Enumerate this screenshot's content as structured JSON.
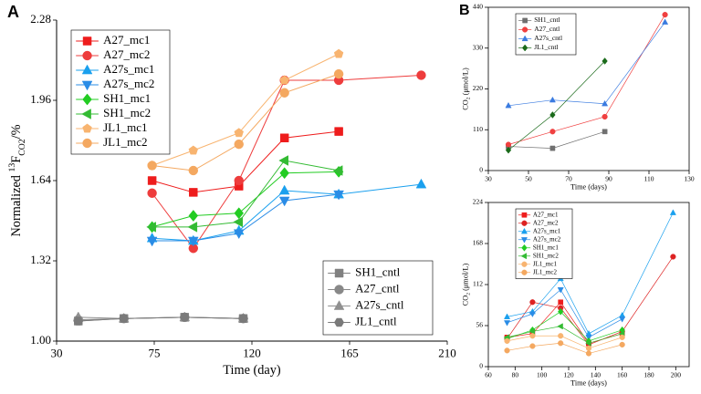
{
  "chart_data": [
    {
      "type": "line",
      "panel": "A",
      "xlabel": "Time (day)",
      "ylabel": [
        {
          "t": "Normalized "
        },
        {
          "t": "13",
          "s": "sup"
        },
        {
          "t": "F"
        },
        {
          "t": "CO2",
          "s": "sub"
        },
        {
          "t": "/%"
        }
      ],
      "xlim": [
        30,
        210
      ],
      "xticks": [
        30,
        75,
        120,
        165,
        210
      ],
      "ylim": [
        1.0,
        2.28
      ],
      "yticks": [
        {
          "value": 1.0,
          "label": "1.00"
        },
        1.32,
        1.64,
        1.96,
        2.28
      ],
      "series": [
        {
          "name": "A27_mc1",
          "color": "#ee1c1c",
          "marker": "square",
          "legend": "upper left",
          "x": [
            74,
            93,
            114,
            135,
            160
          ],
          "values": [
            1.64,
            1.593,
            1.618,
            1.81,
            1.836
          ]
        },
        {
          "name": "A27_mc2",
          "color": "#ee3c3c",
          "marker": "circle",
          "legend": "upper left",
          "x": [
            74,
            93,
            114,
            135,
            160,
            198
          ],
          "values": [
            1.59,
            1.37,
            1.64,
            2.04,
            2.04,
            2.06
          ]
        },
        {
          "name": "A27s_mc1",
          "color": "#1aa0ee",
          "marker": "triangle-up",
          "legend": "upper left",
          "x": [
            74,
            93,
            114,
            135,
            160,
            198
          ],
          "values": [
            1.41,
            1.4,
            1.44,
            1.6,
            1.585,
            1.625
          ]
        },
        {
          "name": "A27s_mc2",
          "color": "#2a8ce6",
          "marker": "triangle-down",
          "legend": "upper left",
          "x": [
            74,
            93,
            114,
            135,
            160
          ],
          "values": [
            1.4,
            1.4,
            1.43,
            1.56,
            1.585
          ]
        },
        {
          "name": "SH1_mc1",
          "color": "#22cc22",
          "marker": "diamond",
          "legend": "upper left",
          "x": [
            74,
            93,
            114,
            135,
            160
          ],
          "values": [
            1.455,
            1.5,
            1.51,
            1.67,
            1.675
          ]
        },
        {
          "name": "SH1_mc2",
          "color": "#33bb33",
          "marker": "triangle-left",
          "legend": "upper left",
          "x": [
            74,
            93,
            114,
            135,
            160
          ],
          "values": [
            1.455,
            1.455,
            1.475,
            1.72,
            1.68
          ]
        },
        {
          "name": "JL1_mc1",
          "color": "#f8b470",
          "marker": "pentagon",
          "legend": "upper left",
          "x": [
            74,
            93,
            114,
            135,
            160
          ],
          "values": [
            1.7,
            1.76,
            1.83,
            2.04,
            2.145
          ]
        },
        {
          "name": "JL1_mc2",
          "color": "#f4a860",
          "marker": "circle",
          "legend": "upper left",
          "x": [
            74,
            93,
            114,
            135,
            160
          ],
          "values": [
            1.7,
            1.68,
            1.785,
            1.99,
            2.065
          ]
        },
        {
          "name": "SH1_cntl",
          "color": "#808080",
          "marker": "square",
          "legend": "lower right",
          "x": [
            40,
            61,
            89,
            116
          ],
          "values": [
            1.08,
            1.09,
            1.095,
            1.09
          ]
        },
        {
          "name": "A27_cntl",
          "color": "#888888",
          "marker": "circle",
          "legend": "lower right",
          "x": [
            40,
            61,
            89,
            116
          ],
          "values": [
            1.085,
            1.09,
            1.095,
            1.09
          ]
        },
        {
          "name": "A27s_cntl",
          "color": "#909090",
          "marker": "triangle-up",
          "legend": "lower right",
          "x": [
            40,
            61,
            89,
            116
          ],
          "values": [
            1.095,
            1.09,
            1.095,
            1.09
          ]
        },
        {
          "name": "JL1_cntl",
          "color": "#7a7a7a",
          "marker": "hexagon",
          "legend": "lower right",
          "x": [
            40,
            61,
            89,
            116
          ],
          "values": [
            1.08,
            1.09,
            1.095,
            1.09
          ]
        }
      ]
    },
    {
      "type": "line",
      "panel": "B",
      "xlabel": "Time (days)",
      "ylabel": [
        {
          "t": "CO"
        },
        {
          "t": "2",
          "s": "sub"
        },
        {
          "t": " (μmol/L)"
        }
      ],
      "xlim": [
        30,
        130
      ],
      "xticks": [
        30,
        50,
        70,
        90,
        110,
        130
      ],
      "ylim": [
        0,
        440
      ],
      "yticks": [
        0,
        110,
        220,
        330,
        440
      ],
      "series": [
        {
          "name": "SH1_cntl",
          "color": "#707070",
          "marker": "square",
          "legend": "upper left",
          "x": [
            40,
            62,
            88
          ],
          "values": [
            65,
            60,
            105
          ]
        },
        {
          "name": "A27_cntl",
          "color": "#f04040",
          "marker": "circle",
          "legend": "upper left",
          "x": [
            40,
            62,
            88,
            118
          ],
          "values": [
            70,
            105,
            145,
            420
          ]
        },
        {
          "name": "A27s_cntl",
          "color": "#3a7be0",
          "marker": "triangle-up",
          "legend": "upper left",
          "x": [
            40,
            62,
            88,
            118
          ],
          "values": [
            175,
            190,
            180,
            400
          ]
        },
        {
          "name": "JL1_cntl",
          "color": "#1a6a1a",
          "marker": "diamond",
          "legend": "upper left",
          "x": [
            40,
            62,
            88
          ],
          "values": [
            55,
            150,
            295
          ]
        }
      ]
    },
    {
      "type": "line",
      "xlabel": "Time (days)",
      "ylabel": [
        {
          "t": "CO"
        },
        {
          "t": "2",
          "s": "sub"
        },
        {
          "t": " (μmol/L)"
        }
      ],
      "xlim": [
        60,
        210
      ],
      "xticks": [
        60,
        80,
        100,
        120,
        140,
        160,
        180,
        200
      ],
      "ylim": [
        0,
        224
      ],
      "yticks": [
        0,
        56,
        112,
        168,
        224
      ],
      "series": [
        {
          "name": "A27_mc1",
          "color": "#ee1c1c",
          "marker": "square",
          "legend": "upper left",
          "x": [
            74,
            93,
            114,
            135,
            160
          ],
          "values": [
            40,
            45,
            88,
            32,
            45
          ]
        },
        {
          "name": "A27_mc2",
          "color": "#dd2222",
          "marker": "circle",
          "legend": "upper left",
          "x": [
            74,
            93,
            114,
            135,
            160,
            198
          ],
          "values": [
            38,
            88,
            80,
            30,
            48,
            150
          ]
        },
        {
          "name": "A27s_mc1",
          "color": "#1aa0ee",
          "marker": "triangle-up",
          "legend": "upper left",
          "x": [
            74,
            93,
            114,
            135,
            160,
            198
          ],
          "values": [
            68,
            75,
            120,
            45,
            70,
            210
          ]
        },
        {
          "name": "A27s_mc2",
          "color": "#2a8ce6",
          "marker": "triangle-down",
          "legend": "upper left",
          "x": [
            74,
            93,
            114,
            135,
            160
          ],
          "values": [
            60,
            72,
            105,
            40,
            65
          ]
        },
        {
          "name": "SH1_mc1",
          "color": "#22cc22",
          "marker": "diamond",
          "legend": "upper left",
          "x": [
            74,
            93,
            114,
            135,
            160
          ],
          "values": [
            38,
            50,
            75,
            35,
            50
          ]
        },
        {
          "name": "SH1_mc2",
          "color": "#33bb33",
          "marker": "triangle-left",
          "legend": "upper left",
          "x": [
            74,
            93,
            114,
            135,
            160
          ],
          "values": [
            40,
            48,
            55,
            32,
            45
          ]
        },
        {
          "name": "JL1_mc1",
          "color": "#f8b470",
          "marker": "circle",
          "legend": "upper left",
          "x": [
            74,
            93,
            114,
            135,
            160
          ],
          "values": [
            35,
            42,
            42,
            25,
            40
          ]
        },
        {
          "name": "JL1_mc2",
          "color": "#f4a860",
          "marker": "circle",
          "legend": "upper left",
          "x": [
            74,
            93,
            114,
            135,
            160
          ],
          "values": [
            22,
            28,
            32,
            18,
            30
          ]
        }
      ]
    }
  ]
}
